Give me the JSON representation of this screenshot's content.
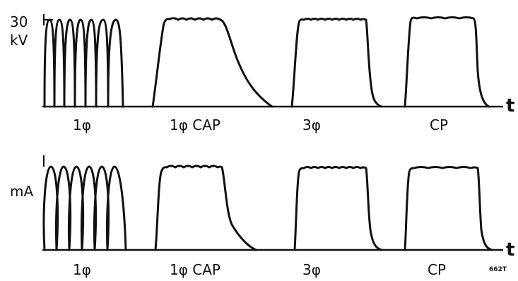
{
  "panels": [
    {
      "id": "kv",
      "axis_value": "30",
      "axis_unit": "kV",
      "time_label": "t",
      "waveform_labels": [
        "1φ",
        "1φ CAP",
        "3φ",
        "CP"
      ]
    },
    {
      "id": "ma",
      "axis_value": "",
      "axis_unit": "mA",
      "time_label": "t",
      "waveform_labels": [
        "1φ",
        "1φ CAP",
        "3φ",
        "CP"
      ]
    }
  ],
  "figure_code": "662T"
}
